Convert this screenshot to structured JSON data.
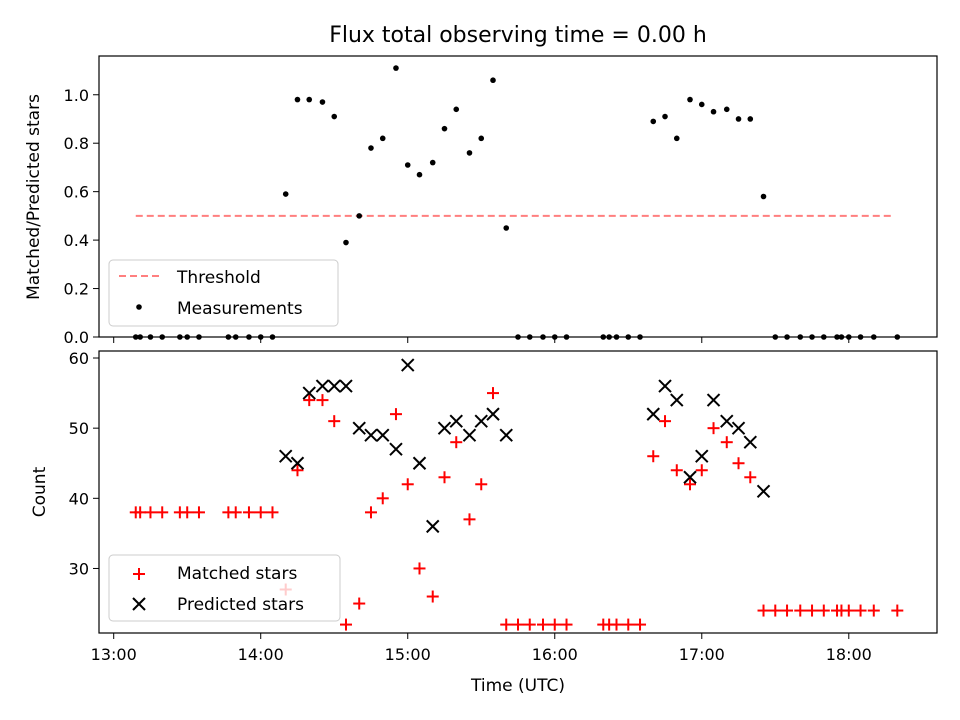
{
  "figure_title": "Flux total observing time = 0.00 h",
  "chart_data": [
    {
      "type": "scatter",
      "title": "Flux total observing time = 0.00 h",
      "xlabel": "",
      "ylabel": "Matched/Predicted stars",
      "ylim": [
        0,
        1.16
      ],
      "yticks": [
        0.0,
        0.2,
        0.4,
        0.6,
        0.8,
        1.0
      ],
      "ytick_labels": [
        "0.0",
        "0.2",
        "0.4",
        "0.6",
        "0.8",
        "1.0"
      ],
      "xlim_hours": [
        12.9,
        18.6
      ],
      "legend": "lower-left",
      "threshold": {
        "name": "Threshold",
        "value": 0.5,
        "x_start": 13.15,
        "x_end": 18.3,
        "color": "#ff7f7f"
      },
      "series": [
        {
          "name": "Measurements",
          "color": "#000000",
          "x": [
            13.15,
            13.18,
            13.25,
            13.33,
            13.45,
            13.5,
            13.58,
            13.78,
            13.83,
            13.92,
            14.0,
            14.08,
            14.17,
            14.25,
            14.33,
            14.42,
            14.5,
            14.58,
            14.67,
            14.75,
            14.83,
            14.92,
            15.0,
            15.08,
            15.17,
            15.25,
            15.33,
            15.42,
            15.5,
            15.58,
            15.67,
            15.75,
            15.83,
            15.92,
            16.0,
            16.08,
            16.33,
            16.37,
            16.42,
            16.5,
            16.58,
            16.67,
            16.75,
            16.83,
            16.92,
            17.0,
            17.08,
            17.17,
            17.25,
            17.33,
            17.42,
            17.5,
            17.58,
            17.67,
            17.75,
            17.83,
            17.92,
            17.95,
            18.0,
            18.08,
            18.17,
            18.33
          ],
          "y": [
            0,
            0,
            0,
            0,
            0,
            0,
            0,
            0,
            0,
            0,
            0,
            0,
            0.59,
            0.98,
            0.98,
            0.97,
            0.91,
            0.39,
            0.5,
            0.78,
            0.82,
            1.11,
            0.71,
            0.67,
            0.72,
            0.86,
            0.94,
            0.76,
            0.82,
            1.06,
            0.45,
            0,
            0,
            0,
            0,
            0,
            0,
            0,
            0,
            0,
            0,
            0.89,
            0.91,
            0.82,
            0.98,
            0.96,
            0.93,
            0.94,
            0.9,
            0.9,
            0.58,
            0,
            0,
            0,
            0,
            0,
            0,
            0,
            0,
            0,
            0,
            0
          ]
        }
      ]
    },
    {
      "type": "scatter",
      "title": "",
      "xlabel": "Time (UTC)",
      "ylabel": "Count",
      "ylim": [
        20.8,
        61.0
      ],
      "yticks": [
        30,
        40,
        50,
        60
      ],
      "ytick_labels": [
        "30",
        "40",
        "50",
        "60"
      ],
      "xlim_hours": [
        12.9,
        18.6
      ],
      "xticks": [
        13,
        14,
        15,
        16,
        17,
        18
      ],
      "xtick_labels": [
        "13:00",
        "14:00",
        "15:00",
        "16:00",
        "17:00",
        "18:00"
      ],
      "legend": "lower-left",
      "series": [
        {
          "name": "Matched stars",
          "marker": "plus",
          "color": "#ff0000",
          "x": [
            13.15,
            13.18,
            13.25,
            13.33,
            13.45,
            13.5,
            13.58,
            13.78,
            13.83,
            13.92,
            14.0,
            14.08,
            14.17,
            14.25,
            14.33,
            14.42,
            14.5,
            14.58,
            14.67,
            14.75,
            14.83,
            14.92,
            15.0,
            15.08,
            15.17,
            15.25,
            15.33,
            15.42,
            15.5,
            15.58,
            15.67,
            15.75,
            15.83,
            15.92,
            16.0,
            16.08,
            16.33,
            16.37,
            16.42,
            16.5,
            16.58,
            16.67,
            16.75,
            16.83,
            16.92,
            17.0,
            17.08,
            17.17,
            17.25,
            17.33,
            17.42,
            17.5,
            17.58,
            17.67,
            17.75,
            17.83,
            17.92,
            17.95,
            18.0,
            18.08,
            18.17,
            18.33
          ],
          "y": [
            38,
            38,
            38,
            38,
            38,
            38,
            38,
            38,
            38,
            38,
            38,
            38,
            27,
            44,
            54,
            54,
            51,
            22,
            25,
            38,
            40,
            52,
            42,
            30,
            26,
            43,
            48,
            37,
            42,
            55,
            22,
            22,
            22,
            22,
            22,
            22,
            22,
            22,
            22,
            22,
            22,
            46,
            51,
            44,
            42,
            44,
            50,
            48,
            45,
            43,
            24,
            24,
            24,
            24,
            24,
            24,
            24,
            24,
            24,
            24,
            24,
            24
          ]
        },
        {
          "name": "Predicted stars",
          "marker": "x",
          "color": "#000000",
          "x": [
            14.17,
            14.25,
            14.33,
            14.42,
            14.5,
            14.58,
            14.67,
            14.75,
            14.83,
            14.92,
            15.0,
            15.08,
            15.17,
            15.25,
            15.33,
            15.42,
            15.5,
            15.58,
            15.67,
            16.67,
            16.75,
            16.83,
            16.92,
            17.0,
            17.08,
            17.17,
            17.25,
            17.33,
            17.42
          ],
          "y": [
            46,
            45,
            55,
            56,
            56,
            56,
            50,
            49,
            49,
            47,
            59,
            45,
            36,
            50,
            51,
            49,
            51,
            52,
            49,
            52,
            56,
            54,
            43,
            46,
            54,
            51,
            50,
            48,
            41
          ]
        }
      ]
    }
  ]
}
